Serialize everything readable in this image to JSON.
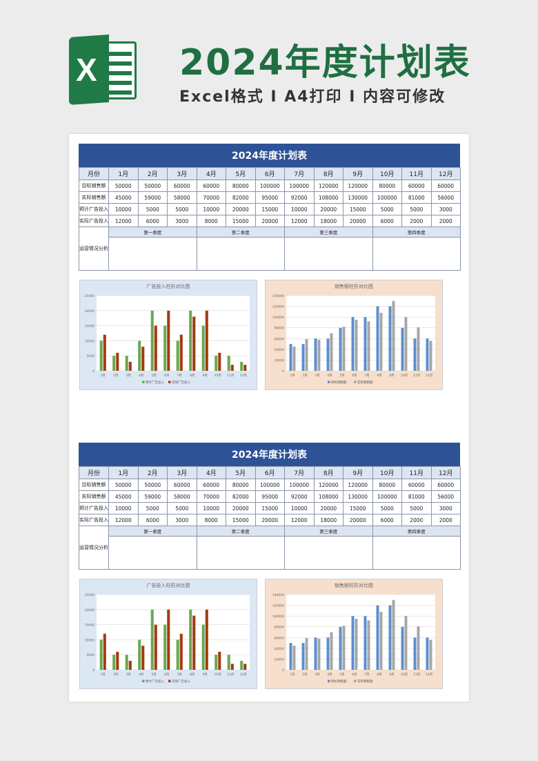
{
  "header": {
    "title": "2024年度计划表",
    "subtitle": "Excel格式 I A4打印 I 内容可修改",
    "logo_letter": "X"
  },
  "colors": {
    "title_green": "#1f6f43",
    "table_header_blue": "#2e5296",
    "light_blue": "#dde4f2",
    "series_green": "#6aa84f",
    "series_brown": "#a33b12",
    "series_blue": "#5b8fd0",
    "series_gray": "#a6a6a6"
  },
  "sheet": {
    "title": "2024年度计划表",
    "month_header": "月份",
    "months": [
      "1月",
      "2月",
      "3月",
      "4月",
      "5月",
      "6月",
      "7月",
      "8月",
      "9月",
      "10月",
      "11月",
      "12月"
    ],
    "rows": [
      {
        "label": "目标销售额",
        "values": [
          "50000",
          "50000",
          "60000",
          "60000",
          "80000",
          "100000",
          "100000",
          "120000",
          "120000",
          "80000",
          "60000",
          "60000"
        ]
      },
      {
        "label": "实际销售额",
        "values": [
          "45000",
          "59000",
          "58000",
          "70000",
          "82000",
          "95000",
          "92000",
          "108000",
          "130000",
          "100000",
          "81000",
          "56000"
        ]
      },
      {
        "label": "预计广告投入",
        "values": [
          "10000",
          "5000",
          "5000",
          "10000",
          "20000",
          "15000",
          "10000",
          "20000",
          "15000",
          "5000",
          "5000",
          "3000"
        ]
      },
      {
        "label": "实际广告投入",
        "values": [
          "12000",
          "6000",
          "3000",
          "8000",
          "15000",
          "20000",
          "12000",
          "18000",
          "20000",
          "6000",
          "2000",
          "2000"
        ]
      }
    ],
    "quarters": [
      "第一季度",
      "第二季度",
      "第三季度",
      "第四季度"
    ],
    "analysis_label": "运营情况分析"
  },
  "chart_data": [
    {
      "type": "bar",
      "title": "广告投入柱形对比图",
      "categories": [
        "1月",
        "2月",
        "3月",
        "4月",
        "5月",
        "6月",
        "7月",
        "8月",
        "9月",
        "10月",
        "11月",
        "12月"
      ],
      "series": [
        {
          "name": "预计广告投入",
          "values": [
            10000,
            5000,
            5000,
            10000,
            20000,
            15000,
            10000,
            20000,
            15000,
            5000,
            5000,
            3000
          ]
        },
        {
          "name": "实际广告投入",
          "values": [
            12000,
            6000,
            3000,
            8000,
            15000,
            20000,
            12000,
            18000,
            20000,
            6000,
            2000,
            2000
          ]
        }
      ],
      "yticks": [
        "0",
        "5000",
        "10000",
        "15000",
        "20000",
        "25000"
      ],
      "ylim": [
        0,
        25000
      ],
      "legend": "bottom",
      "grid": true
    },
    {
      "type": "bar",
      "title": "销售额柱形对比图",
      "categories": [
        "1月",
        "2月",
        "3月",
        "4月",
        "5月",
        "6月",
        "7月",
        "8月",
        "9月",
        "10月",
        "11月",
        "12月"
      ],
      "series": [
        {
          "name": "目标销售额",
          "values": [
            50000,
            50000,
            60000,
            60000,
            80000,
            100000,
            100000,
            120000,
            120000,
            80000,
            60000,
            60000
          ]
        },
        {
          "name": "实际销售额",
          "values": [
            45000,
            59000,
            58000,
            70000,
            82000,
            95000,
            92000,
            108000,
            130000,
            100000,
            81000,
            56000
          ]
        }
      ],
      "yticks": [
        "0",
        "20000",
        "40000",
        "60000",
        "80000",
        "100000",
        "120000",
        "140000"
      ],
      "ylim": [
        0,
        140000
      ],
      "legend": "bottom",
      "grid": true
    }
  ]
}
